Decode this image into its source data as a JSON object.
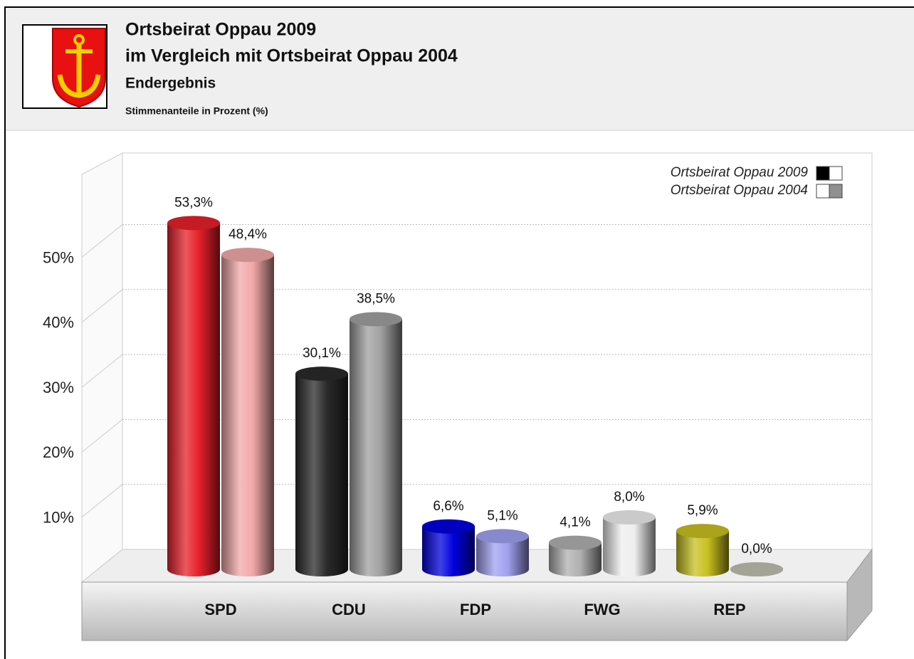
{
  "chart_data": {
    "type": "cylinder_bar",
    "title_lines": [
      "Ortsbeirat Oppau 2009",
      "im Vergleich mit Ortsbeirat Oppau 2004"
    ],
    "subtitle": "Endergebnis",
    "note": "Stimmenanteile in Prozent (%)",
    "categories": [
      "SPD",
      "CDU",
      "FDP",
      "FWG",
      "REP"
    ],
    "series": [
      {
        "name": "Ortsbeirat Oppau 2009",
        "values": [
          53.3,
          30.1,
          6.6,
          4.1,
          5.9
        ],
        "value_labels": [
          "53,3%",
          "30,1%",
          "6,6%",
          "4,1%",
          "5,9%"
        ],
        "colors": [
          "#e8202a",
          "#2a2a2a",
          "#0000e0",
          "#b0b0b0",
          "#c8c020"
        ],
        "legend_swatch": [
          "#000000",
          "#ffffff"
        ]
      },
      {
        "name": "Ortsbeirat Oppau 2004",
        "values": [
          48.4,
          38.5,
          5.1,
          8.0,
          0.0
        ],
        "value_labels": [
          "48,4%",
          "38,5%",
          "5,1%",
          "8,0%",
          "0,0%"
        ],
        "colors": [
          "#f2a8a8",
          "#a0a0a0",
          "#a0a0f0",
          "#eeeeee",
          "#c0c0b0"
        ],
        "legend_swatch": [
          "#ffffff",
          "#909090"
        ]
      }
    ],
    "ylim": [
      0,
      60
    ],
    "yticks": [
      {
        "value": 10,
        "label": "10%"
      },
      {
        "value": 20,
        "label": "20%"
      },
      {
        "value": 30,
        "label": "30%"
      },
      {
        "value": 40,
        "label": "40%"
      },
      {
        "value": 50,
        "label": "50%"
      }
    ],
    "grid": true
  }
}
